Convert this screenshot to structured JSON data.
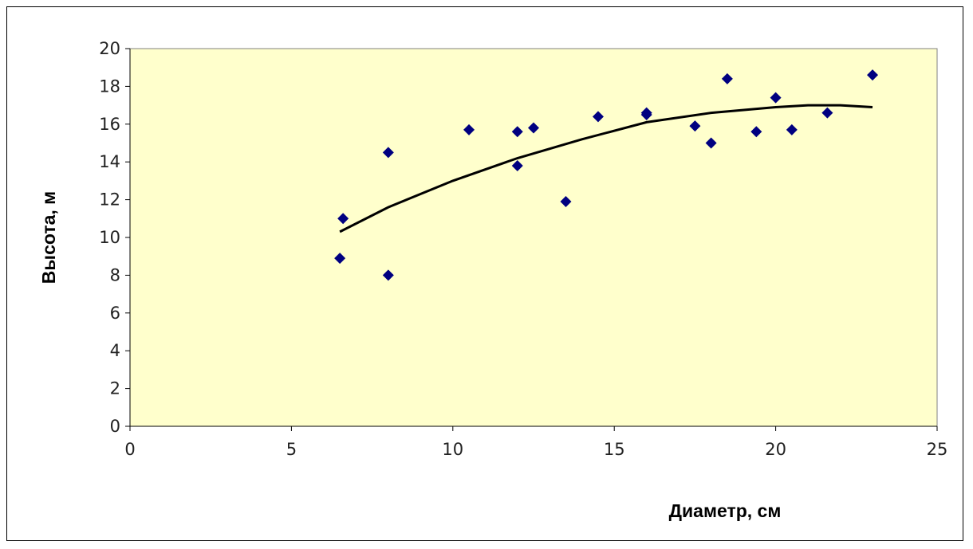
{
  "chart_data": {
    "type": "scatter",
    "xlabel": "Диаметр, см",
    "ylabel": "Высота, м",
    "xlim": [
      0,
      25
    ],
    "ylim": [
      0,
      20
    ],
    "x_ticks": [
      "0",
      "5",
      "10",
      "15",
      "20",
      "25"
    ],
    "y_ticks": [
      "0",
      "2",
      "4",
      "6",
      "8",
      "10",
      "12",
      "14",
      "16",
      "18",
      "20"
    ],
    "grid": false,
    "legend": "none",
    "plot_background": "#ffffcc",
    "marker_color": "#000080",
    "trendline_color": "#000000",
    "points": [
      {
        "x": 6.5,
        "y": 8.9
      },
      {
        "x": 6.6,
        "y": 11.0
      },
      {
        "x": 8.0,
        "y": 14.5
      },
      {
        "x": 8.0,
        "y": 8.0
      },
      {
        "x": 10.5,
        "y": 15.7
      },
      {
        "x": 12.0,
        "y": 15.6
      },
      {
        "x": 12.0,
        "y": 13.8
      },
      {
        "x": 12.5,
        "y": 15.8
      },
      {
        "x": 13.5,
        "y": 11.9
      },
      {
        "x": 14.5,
        "y": 16.4
      },
      {
        "x": 16.0,
        "y": 16.6
      },
      {
        "x": 16.0,
        "y": 16.5
      },
      {
        "x": 17.5,
        "y": 15.9
      },
      {
        "x": 18.0,
        "y": 15.0
      },
      {
        "x": 18.5,
        "y": 18.4
      },
      {
        "x": 19.4,
        "y": 15.6
      },
      {
        "x": 20.0,
        "y": 17.4
      },
      {
        "x": 20.5,
        "y": 15.7
      },
      {
        "x": 21.6,
        "y": 16.6
      },
      {
        "x": 23.0,
        "y": 18.6
      }
    ],
    "trendline": {
      "type": "polynomial",
      "x": [
        6.5,
        8,
        10,
        12,
        14,
        16,
        18,
        20,
        21,
        22,
        23
      ],
      "y": [
        10.3,
        11.6,
        13.0,
        14.2,
        15.2,
        16.1,
        16.6,
        16.9,
        17.0,
        17.0,
        16.9
      ]
    }
  }
}
